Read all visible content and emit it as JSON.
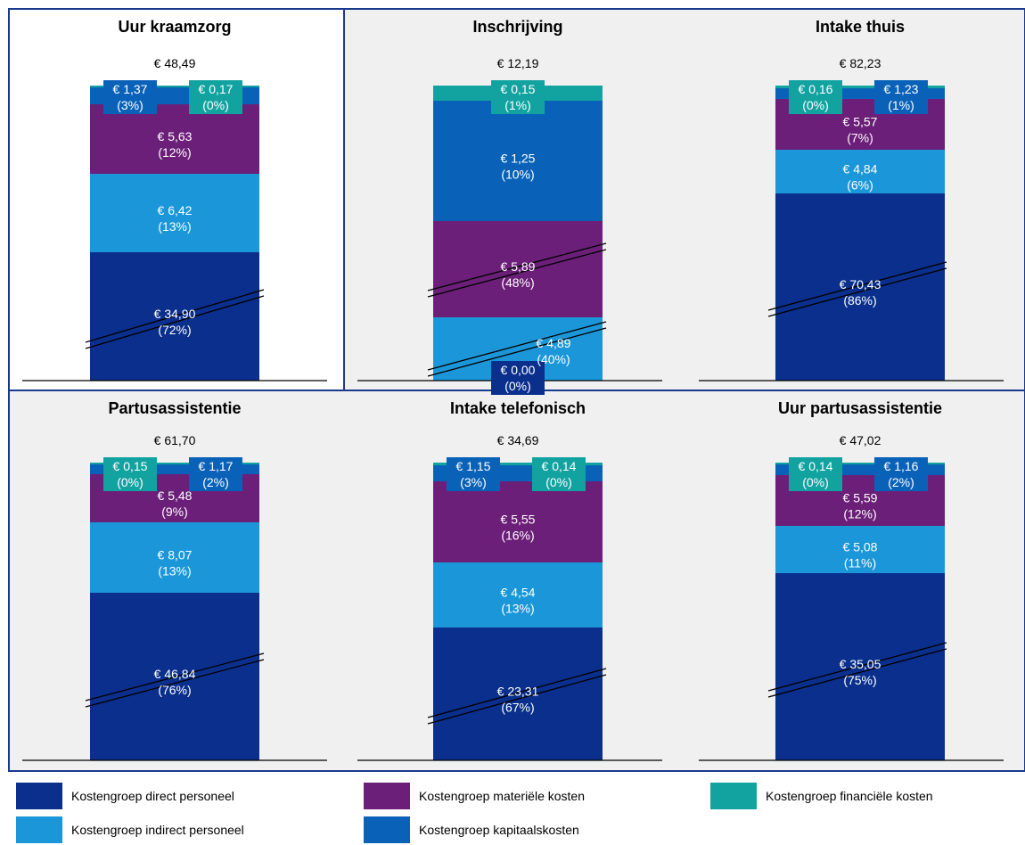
{
  "colors": {
    "direct": "#0a2f8c",
    "indirect": "#1b97d9",
    "materieel": "#6b1f78",
    "financieel": "#12a3a0",
    "kapitaal": "#0a62b8",
    "panel_bg": "#f0f0f0",
    "panel_border": "#1a3a8c"
  },
  "chart_data": [
    {
      "type": "bar",
      "title": "Uur kraamzorg",
      "total_label": "€ 48,49",
      "segments": [
        {
          "series": "direct",
          "value": 34.9,
          "value_label": "€ 34,90",
          "pct_label": "(72%)"
        },
        {
          "series": "indirect",
          "value": 6.42,
          "value_label": "€ 6,42",
          "pct_label": "(13%)"
        },
        {
          "series": "materieel",
          "value": 5.63,
          "value_label": "€ 5,63",
          "pct_label": "(12%)"
        },
        {
          "series": "kapitaal",
          "value": 1.37,
          "value_label": "€ 1,37",
          "pct_label": "(3%)"
        },
        {
          "series": "financieel",
          "value": 0.17,
          "value_label": "€ 0,17",
          "pct_label": "(0%)"
        }
      ]
    },
    {
      "type": "bar",
      "title": "Inschrijving",
      "total_label": "€ 12,19",
      "segments": [
        {
          "series": "direct",
          "value": 0.0,
          "value_label": "€ 0,00",
          "pct_label": "(0%)"
        },
        {
          "series": "indirect",
          "value": 4.89,
          "value_label": "€ 4,89",
          "pct_label": "(40%)"
        },
        {
          "series": "materieel",
          "value": 5.89,
          "value_label": "€ 5,89",
          "pct_label": "(48%)"
        },
        {
          "series": "kapitaal",
          "value": 1.25,
          "value_label": "€ 1,25",
          "pct_label": "(10%)"
        },
        {
          "series": "financieel",
          "value": 0.15,
          "value_label": "€ 0,15",
          "pct_label": "(1%)"
        }
      ]
    },
    {
      "type": "bar",
      "title": "Intake thuis",
      "total_label": "€ 82,23",
      "segments": [
        {
          "series": "direct",
          "value": 70.43,
          "value_label": "€ 70,43",
          "pct_label": "(86%)"
        },
        {
          "series": "indirect",
          "value": 4.84,
          "value_label": "€ 4,84",
          "pct_label": "(6%)"
        },
        {
          "series": "materieel",
          "value": 5.57,
          "value_label": "€ 5,57",
          "pct_label": "(7%)"
        },
        {
          "series": "kapitaal",
          "value": 1.23,
          "value_label": "€ 1,23",
          "pct_label": "(1%)"
        },
        {
          "series": "financieel",
          "value": 0.16,
          "value_label": "€ 0,16",
          "pct_label": "(0%)"
        }
      ]
    },
    {
      "type": "bar",
      "title": "Partusassistentie",
      "total_label": "€ 61,70",
      "segments": [
        {
          "series": "direct",
          "value": 46.84,
          "value_label": "€ 46,84",
          "pct_label": "(76%)"
        },
        {
          "series": "indirect",
          "value": 8.07,
          "value_label": "€ 8,07",
          "pct_label": "(13%)"
        },
        {
          "series": "materieel",
          "value": 5.48,
          "value_label": "€ 5,48",
          "pct_label": "(9%)"
        },
        {
          "series": "kapitaal",
          "value": 1.17,
          "value_label": "€ 1,17",
          "pct_label": "(2%)"
        },
        {
          "series": "financieel",
          "value": 0.15,
          "value_label": "€ 0,15",
          "pct_label": "(0%)"
        }
      ]
    },
    {
      "type": "bar",
      "title": "Intake telefonisch",
      "total_label": "€ 34,69",
      "segments": [
        {
          "series": "direct",
          "value": 23.31,
          "value_label": "€ 23,31",
          "pct_label": "(67%)"
        },
        {
          "series": "indirect",
          "value": 4.54,
          "value_label": "€ 4,54",
          "pct_label": "(13%)"
        },
        {
          "series": "materieel",
          "value": 5.55,
          "value_label": "€ 5,55",
          "pct_label": "(16%)"
        },
        {
          "series": "kapitaal",
          "value": 1.15,
          "value_label": "€ 1,15",
          "pct_label": "(3%)"
        },
        {
          "series": "financieel",
          "value": 0.14,
          "value_label": "€ 0,14",
          "pct_label": "(0%)"
        }
      ]
    },
    {
      "type": "bar",
      "title": "Uur partusassistentie",
      "total_label": "€ 47,02",
      "segments": [
        {
          "series": "direct",
          "value": 35.05,
          "value_label": "€ 35,05",
          "pct_label": "(75%)"
        },
        {
          "series": "indirect",
          "value": 5.08,
          "value_label": "€ 5,08",
          "pct_label": "(11%)"
        },
        {
          "series": "materieel",
          "value": 5.59,
          "value_label": "€ 5,59",
          "pct_label": "(12%)"
        },
        {
          "series": "kapitaal",
          "value": 1.16,
          "value_label": "€ 1,16",
          "pct_label": "(2%)"
        },
        {
          "series": "financieel",
          "value": 0.14,
          "value_label": "€ 0,14",
          "pct_label": "(0%)"
        }
      ]
    }
  ],
  "legend": {
    "direct": "Kostengroep direct personeel",
    "materieel": "Kostengroep materiële kosten",
    "financieel": "Kostengroep financiële kosten",
    "indirect": "Kostengroep indirect personeel",
    "kapitaal": "Kostengroep kapitaalskosten"
  }
}
